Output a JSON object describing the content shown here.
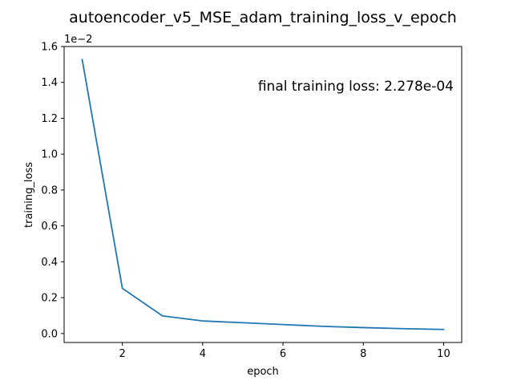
{
  "chart_data": {
    "type": "line",
    "title": "autoencoder_v5_MSE_adam_training_loss_v_epoch",
    "xlabel": "epoch",
    "ylabel": "training_loss",
    "y_multiplier_label": "1e−2",
    "annotation": "final training loss: 2.278e-04",
    "xlim": [
      0.55,
      10.45
    ],
    "ylim": [
      -0.0005,
      0.016
    ],
    "x_ticks": [
      2,
      4,
      6,
      8,
      10
    ],
    "x_tick_labels": [
      "2",
      "4",
      "6",
      "8",
      "10"
    ],
    "y_ticks": [
      0,
      0.002,
      0.004,
      0.006,
      0.008,
      0.01,
      0.012,
      0.014,
      0.016
    ],
    "y_tick_labels": [
      "0.0",
      "0.2",
      "0.4",
      "0.6",
      "0.8",
      "1.0",
      "1.2",
      "1.4",
      "1.6"
    ],
    "grid": false,
    "series": [
      {
        "x": [
          1,
          2,
          3,
          4,
          5,
          6,
          7,
          8,
          9,
          10
        ],
        "y": [
          0.01527,
          0.00252,
          0.00098,
          0.0007,
          0.0006,
          0.0005,
          0.0004,
          0.00033,
          0.00027,
          0.000228
        ],
        "color": "#1f77b4"
      }
    ]
  }
}
